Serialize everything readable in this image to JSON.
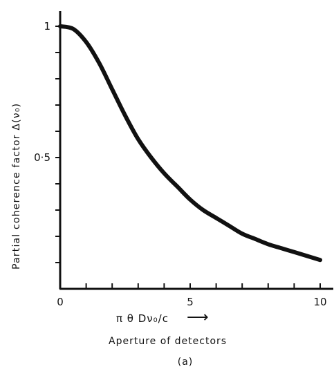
{
  "chart_data": {
    "type": "line",
    "xlim": [
      0,
      10
    ],
    "ylim": [
      0,
      1
    ],
    "x_ticks": [
      "0",
      "5",
      "10"
    ],
    "y_ticks": [
      "0.5",
      "1"
    ],
    "y_tick_labels_shown": [
      "0·5",
      "1"
    ],
    "minor_x_ticks_step": 1,
    "minor_y_ticks_step": 0.1,
    "grid": false,
    "series": [
      {
        "x": [
          0,
          0.5,
          1,
          1.5,
          2,
          2.5,
          3,
          3.5,
          4,
          4.5,
          5,
          5.5,
          6,
          6.5,
          7,
          7.5,
          8,
          8.5,
          9,
          9.5,
          10
        ],
        "y": [
          1.0,
          0.99,
          0.94,
          0.86,
          0.76,
          0.66,
          0.57,
          0.5,
          0.44,
          0.39,
          0.34,
          0.3,
          0.27,
          0.24,
          0.21,
          0.19,
          0.17,
          0.155,
          0.14,
          0.125,
          0.11
        ]
      }
    ],
    "xlabel": "π θ Dν₀/c",
    "xlabel_arrow": "⟶",
    "x_caption": "Aperture of detectors",
    "ylabel": "Partial coherence factor Δ(ν₀)",
    "panel_label": "(a)"
  },
  "colors": {
    "ink": "#111111",
    "background": "#ffffff"
  }
}
